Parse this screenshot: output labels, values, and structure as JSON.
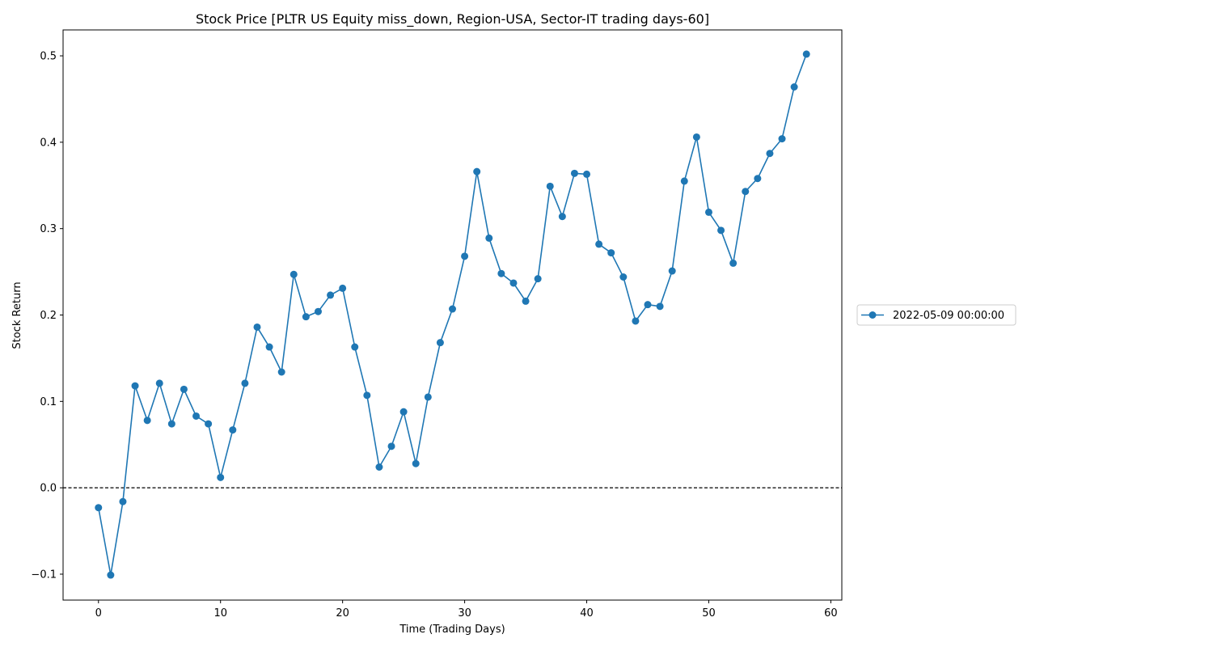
{
  "chart_data": {
    "type": "line",
    "title": "Stock Price [PLTR US Equity miss_down, Region-USA, Sector-IT trading days-60]",
    "xlabel": "Time (Trading Days)",
    "ylabel": "Stock Return",
    "xlim": [
      -2.9,
      60.9
    ],
    "ylim": [
      -0.13,
      0.53
    ],
    "xticks": [
      0,
      10,
      20,
      30,
      40,
      50,
      60
    ],
    "yticks": [
      -0.1,
      0.0,
      0.1,
      0.2,
      0.3,
      0.4,
      0.5
    ],
    "xtick_labels": [
      "0",
      "10",
      "20",
      "30",
      "40",
      "50",
      "60"
    ],
    "ytick_labels": [
      "−0.1",
      "0.0",
      "0.1",
      "0.2",
      "0.3",
      "0.4",
      "0.5"
    ],
    "reference_line": {
      "y": 0.0,
      "style": "dashed",
      "color": "#000000"
    },
    "grid": false,
    "legend_position": "center-right outside",
    "series": [
      {
        "name": "2022-05-09 00:00:00",
        "color": "#1f77b4",
        "marker": "circle",
        "x": [
          0,
          1,
          2,
          3,
          4,
          5,
          6,
          7,
          8,
          9,
          10,
          11,
          12,
          13,
          14,
          15,
          16,
          17,
          18,
          19,
          20,
          21,
          22,
          23,
          24,
          25,
          26,
          27,
          28,
          29,
          30,
          31,
          32,
          33,
          34,
          35,
          36,
          37,
          38,
          39,
          40,
          41,
          42,
          43,
          44,
          45,
          46,
          47,
          48,
          49,
          50,
          51,
          52,
          53,
          54,
          55,
          56,
          57,
          58
        ],
        "y": [
          -0.023,
          -0.101,
          -0.016,
          0.118,
          0.078,
          0.121,
          0.074,
          0.114,
          0.083,
          0.074,
          0.012,
          0.067,
          0.121,
          0.186,
          0.163,
          0.134,
          0.247,
          0.198,
          0.204,
          0.223,
          0.231,
          0.163,
          0.107,
          0.024,
          0.048,
          0.088,
          0.028,
          0.105,
          0.168,
          0.207,
          0.268,
          0.366,
          0.289,
          0.248,
          0.237,
          0.216,
          0.242,
          0.349,
          0.314,
          0.364,
          0.363,
          0.282,
          0.272,
          0.244,
          0.193,
          0.212,
          0.21,
          0.251,
          0.355,
          0.406,
          0.319,
          0.298,
          0.26,
          0.343,
          0.358,
          0.387,
          0.404,
          0.464,
          0.502
        ]
      }
    ]
  }
}
